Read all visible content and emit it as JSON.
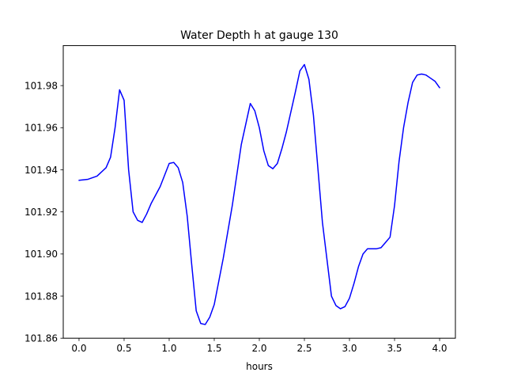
{
  "chart_data": {
    "type": "line",
    "title": "Water Depth h at gauge 130",
    "xlabel": "hours",
    "ylabel": "",
    "xlim": [
      -0.175,
      4.175
    ],
    "ylim": [
      101.86,
      101.999
    ],
    "xticks": [
      0.0,
      0.5,
      1.0,
      1.5,
      2.0,
      2.5,
      3.0,
      3.5,
      4.0
    ],
    "xtick_labels": [
      "0.0",
      "0.5",
      "1.0",
      "1.5",
      "2.0",
      "2.5",
      "3.0",
      "3.5",
      "4.0"
    ],
    "yticks": [
      101.86,
      101.88,
      101.9,
      101.92,
      101.94,
      101.96,
      101.98
    ],
    "ytick_labels": [
      "101.86",
      "101.88",
      "101.90",
      "101.92",
      "101.94",
      "101.96",
      "101.98"
    ],
    "grid": false,
    "series": [
      {
        "color": "#0000ff",
        "x": [
          0.0,
          0.1,
          0.2,
          0.3,
          0.35,
          0.4,
          0.45,
          0.5,
          0.55,
          0.6,
          0.65,
          0.7,
          0.75,
          0.8,
          0.9,
          1.0,
          1.05,
          1.1,
          1.15,
          1.2,
          1.25,
          1.3,
          1.35,
          1.4,
          1.45,
          1.5,
          1.6,
          1.7,
          1.8,
          1.9,
          1.95,
          2.0,
          2.05,
          2.1,
          2.15,
          2.2,
          2.25,
          2.3,
          2.4,
          2.45,
          2.5,
          2.55,
          2.6,
          2.7,
          2.8,
          2.85,
          2.9,
          2.95,
          3.0,
          3.05,
          3.1,
          3.15,
          3.2,
          3.25,
          3.3,
          3.35,
          3.4,
          3.45,
          3.5,
          3.55,
          3.6,
          3.65,
          3.7,
          3.75,
          3.8,
          3.85,
          3.9,
          3.95,
          4.0
        ],
        "values": [
          101.935,
          101.9355,
          101.937,
          101.941,
          101.946,
          101.96,
          101.978,
          101.973,
          101.94,
          101.92,
          101.916,
          101.915,
          101.919,
          101.924,
          101.932,
          101.943,
          101.9435,
          101.941,
          101.934,
          101.918,
          101.895,
          101.873,
          101.867,
          101.8665,
          101.87,
          101.876,
          101.898,
          101.923,
          101.952,
          101.9715,
          101.968,
          101.96,
          101.949,
          101.942,
          101.9405,
          101.943,
          101.95,
          101.958,
          101.977,
          101.987,
          101.99,
          101.983,
          101.966,
          101.915,
          101.88,
          101.8755,
          101.874,
          101.875,
          101.879,
          101.886,
          101.894,
          101.9,
          101.9025,
          101.9025,
          101.9025,
          101.903,
          101.9055,
          101.908,
          101.923,
          101.944,
          101.96,
          101.972,
          101.9815,
          101.985,
          101.9855,
          101.985,
          101.9835,
          101.982,
          101.979
        ]
      }
    ]
  }
}
